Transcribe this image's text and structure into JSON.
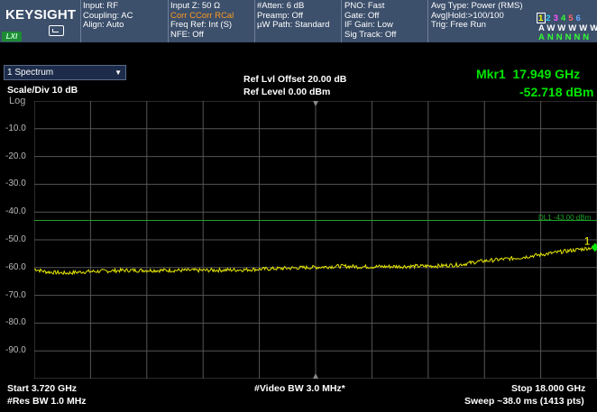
{
  "header": {
    "brand": "KEYSIGHT",
    "lxi": "LXI",
    "col1": [
      "Input: RF",
      "Coupling: AC",
      "Align: Auto"
    ],
    "col2": [
      "Input Z: 50 Ω",
      "Corr CCorr RCal",
      "Freq Ref: Int (S)",
      "NFE: Off"
    ],
    "col3": [
      "#Atten: 6 dB",
      "Preamp: Off",
      "µW Path: Standard"
    ],
    "col4": [
      "PNO: Fast",
      "Gate: Off",
      "IF Gain: Low",
      "Sig Track: Off"
    ],
    "col5": [
      "Avg Type: Power (RMS)",
      "Avg|Hold:>100/100",
      "Trig: Free Run"
    ],
    "traces": {
      "numbers": [
        "1",
        "2",
        "3",
        "4",
        "5",
        "6"
      ],
      "numbers_colors": [
        "#ffff00",
        "#33ccff",
        "#ff55ff",
        "#33ff33",
        "#ff6666",
        "#66aaff"
      ],
      "types": "AWWWWW",
      "detectors": "ANNNNN"
    }
  },
  "window": {
    "dropdown": "1 Spectrum",
    "ref_offset": "Ref Lvl Offset 20.00 dB",
    "ref_level": "Ref Level 0.00 dBm",
    "scale": "Scale/Div 10 dB",
    "log": "Log"
  },
  "marker": {
    "label": "Mkr1",
    "freq": "17.949 GHz",
    "amp": "-52.718 dBm",
    "number": "1"
  },
  "display_line": {
    "label": "DL1 -43.00 dBm",
    "value": -43
  },
  "y_axis_labels": [
    "-10.0",
    "-20.0",
    "-30.0",
    "-40.0",
    "-50.0",
    "-60.0",
    "-70.0",
    "-80.0",
    "-90.0"
  ],
  "footer": {
    "start": "Start 3.720 GHz",
    "rbw": "#Res BW 1.0 MHz",
    "vbw": "#Video BW 3.0 MHz*",
    "stop": "Stop 18.000 GHz",
    "sweep": "Sweep ~38.0 ms (1413 pts)"
  },
  "chart_data": {
    "type": "line",
    "ylabel": "",
    "ylim": [
      -100,
      0
    ],
    "xlim": [
      3.72,
      18.0
    ],
    "grid": true,
    "series": [
      {
        "color": "#e6e600",
        "x": [
          3.72,
          4.0,
          4.5,
          5.0,
          6.0,
          7.0,
          8.0,
          9.0,
          10.0,
          11.0,
          11.5,
          12.0,
          13.0,
          14.0,
          14.5,
          15.0,
          16.0,
          17.0,
          17.949,
          18.0
        ],
        "y": [
          -60.5,
          -61.5,
          -62.0,
          -61.5,
          -61.0,
          -61.0,
          -61.0,
          -60.8,
          -60.3,
          -59.8,
          -59.5,
          -59.7,
          -59.6,
          -59.4,
          -59.0,
          -57.8,
          -56.5,
          -54.5,
          -52.7,
          -53.0
        ]
      }
    ]
  }
}
